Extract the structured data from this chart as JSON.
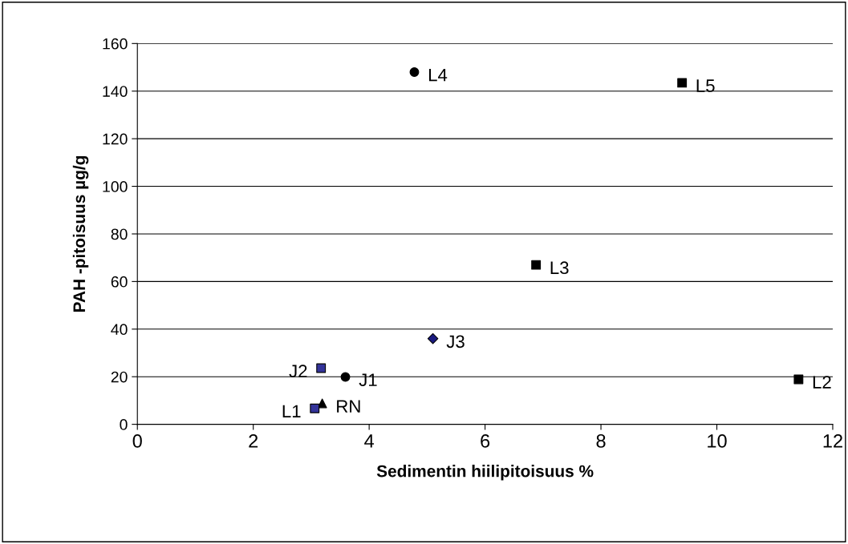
{
  "chart_data": {
    "type": "scatter",
    "xlabel": "Sedimentin hiilipitoisuus %",
    "ylabel": "PAH -pitoisuus µg/g",
    "xlim": [
      0,
      12
    ],
    "xticks": [
      0,
      2,
      4,
      6,
      8,
      10,
      12
    ],
    "ylim": [
      0,
      160
    ],
    "yticks": [
      0,
      20,
      40,
      60,
      80,
      100,
      120,
      140,
      160
    ],
    "grid": "y",
    "legend": false,
    "series": [
      {
        "name": "L4",
        "x": [
          4.78
        ],
        "values": [
          148
        ],
        "color": "#000000",
        "marker": "circle"
      },
      {
        "name": "L5",
        "x": [
          9.4
        ],
        "values": [
          143.5
        ],
        "color": "#000000",
        "marker": "square"
      },
      {
        "name": "L3",
        "x": [
          6.88
        ],
        "values": [
          67
        ],
        "color": "#000000",
        "marker": "square"
      },
      {
        "name": "L2",
        "x": [
          11.41
        ],
        "values": [
          18.9
        ],
        "color": "#000000",
        "marker": "square"
      },
      {
        "name": "J3",
        "x": [
          5.1
        ],
        "values": [
          36
        ],
        "color": "#1a1a80",
        "marker": "diamond"
      },
      {
        "name": "J1",
        "x": [
          3.59
        ],
        "values": [
          19.9
        ],
        "color": "#000000",
        "marker": "circle"
      },
      {
        "name": "J2",
        "x": [
          3.17
        ],
        "values": [
          23.6
        ],
        "color": "#333399",
        "marker": "square"
      },
      {
        "name": "RN",
        "x": [
          3.19
        ],
        "values": [
          8.8
        ],
        "color": "#000000",
        "marker": "triangle"
      },
      {
        "name": "L1",
        "x": [
          3.06
        ],
        "values": [
          6.7
        ],
        "color": "#333399",
        "marker": "square"
      }
    ]
  }
}
